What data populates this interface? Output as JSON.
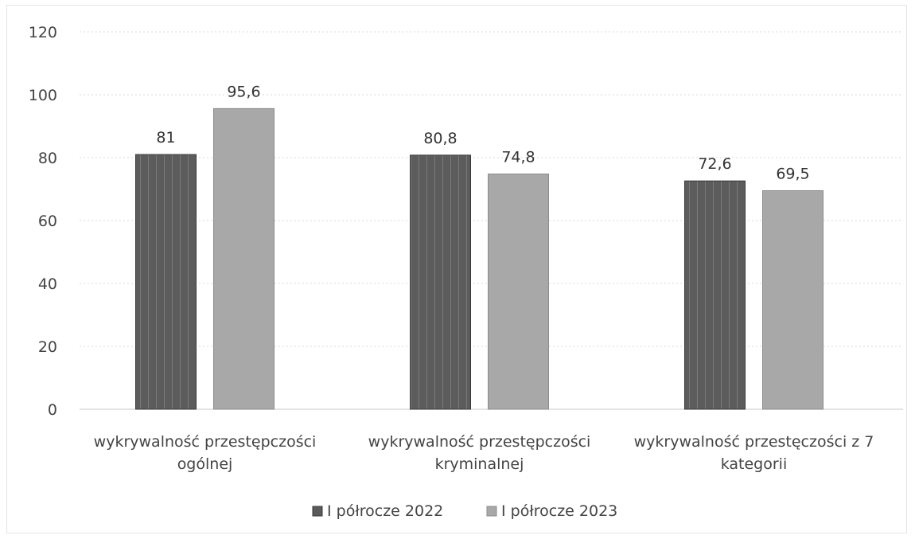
{
  "chart_data": {
    "type": "bar",
    "categories": [
      "wykrywalność przestępczości ogólnej",
      "wykrywalność przestępczości kryminalnej",
      "wykrywalność przestęczości z 7 kategorii"
    ],
    "category_lines": [
      [
        "wykrywalność przestępczości",
        "ogólnej"
      ],
      [
        "wykrywalność przestępczości",
        "kryminalnej"
      ],
      [
        "wykrywalność przestęczości z 7",
        "kategorii"
      ]
    ],
    "series": [
      {
        "name": "I półrocze 2022",
        "values": [
          81,
          80.8,
          72.6
        ],
        "labels": [
          "81",
          "80,8",
          "72,6"
        ],
        "color": "#5a5a5a"
      },
      {
        "name": "I półrocze 2023",
        "values": [
          95.6,
          74.8,
          69.5
        ],
        "labels": [
          "95,6",
          "74,8",
          "69,5"
        ],
        "color": "#a8a8a8"
      }
    ],
    "ylim": [
      0,
      120
    ],
    "yticks": [
      "0",
      "20",
      "40",
      "60",
      "80",
      "100",
      "120"
    ],
    "grid": true,
    "legend_position": "bottom",
    "title": "",
    "xlabel": "",
    "ylabel": ""
  }
}
